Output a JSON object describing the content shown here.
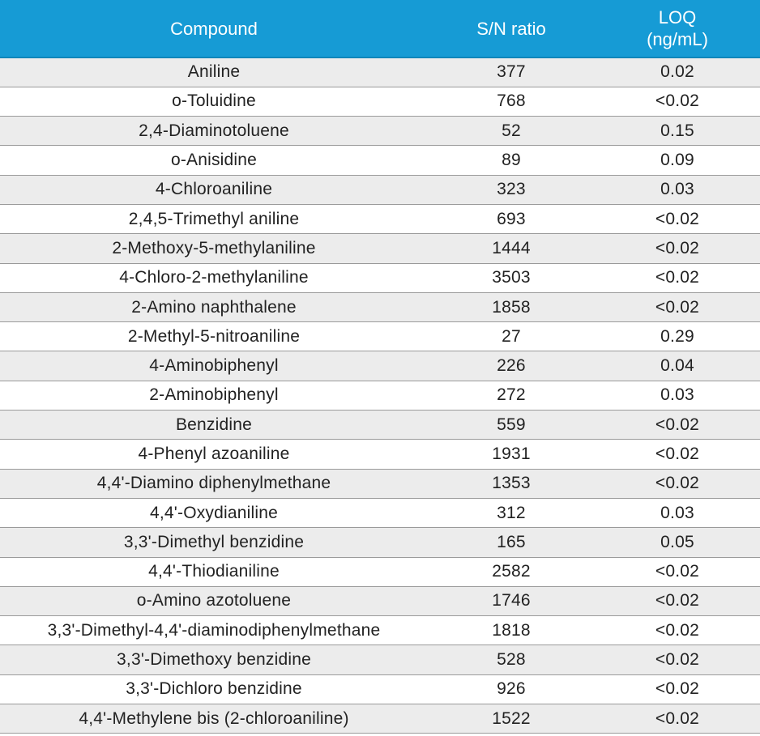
{
  "table": {
    "headers": {
      "compound": "Compound",
      "sn_ratio": "S/N ratio",
      "loq_line1": "LOQ",
      "loq_line2": "(ng/mL)"
    },
    "rows": [
      {
        "compound": "Aniline",
        "sn_ratio": "377",
        "loq": "0.02"
      },
      {
        "compound": "o-Toluidine",
        "sn_ratio": "768",
        "loq": "<0.02"
      },
      {
        "compound": "2,4-Diaminotoluene",
        "sn_ratio": "52",
        "loq": "0.15"
      },
      {
        "compound": "o-Anisidine",
        "sn_ratio": "89",
        "loq": "0.09"
      },
      {
        "compound": "4-Chloroaniline",
        "sn_ratio": "323",
        "loq": "0.03"
      },
      {
        "compound": "2,4,5-Trimethyl aniline",
        "sn_ratio": "693",
        "loq": "<0.02"
      },
      {
        "compound": "2-Methoxy-5-methylaniline",
        "sn_ratio": "1444",
        "loq": "<0.02"
      },
      {
        "compound": "4-Chloro-2-methylaniline",
        "sn_ratio": "3503",
        "loq": "<0.02"
      },
      {
        "compound": "2-Amino naphthalene",
        "sn_ratio": "1858",
        "loq": "<0.02"
      },
      {
        "compound": "2-Methyl-5-nitroaniline",
        "sn_ratio": "27",
        "loq": "0.29"
      },
      {
        "compound": "4-Aminobiphenyl",
        "sn_ratio": "226",
        "loq": "0.04"
      },
      {
        "compound": "2-Aminobiphenyl",
        "sn_ratio": "272",
        "loq": "0.03"
      },
      {
        "compound": "Benzidine",
        "sn_ratio": "559",
        "loq": "<0.02"
      },
      {
        "compound": "4-Phenyl azoaniline",
        "sn_ratio": "1931",
        "loq": "<0.02"
      },
      {
        "compound": "4,4'-Diamino diphenylmethane",
        "sn_ratio": "1353",
        "loq": "<0.02"
      },
      {
        "compound": "4,4'-Oxydianiline",
        "sn_ratio": "312",
        "loq": "0.03"
      },
      {
        "compound": "3,3'-Dimethyl benzidine",
        "sn_ratio": "165",
        "loq": "0.05"
      },
      {
        "compound": "4,4'-Thiodianiline",
        "sn_ratio": "2582",
        "loq": "<0.02"
      },
      {
        "compound": "o-Amino azotoluene",
        "sn_ratio": "1746",
        "loq": "<0.02"
      },
      {
        "compound": "3,3'-Dimethyl-4,4'-diaminodiphenylmethane",
        "sn_ratio": "1818",
        "loq": "<0.02"
      },
      {
        "compound": "3,3'-Dimethoxy benzidine",
        "sn_ratio": "528",
        "loq": "<0.02"
      },
      {
        "compound": "3,3'-Dichloro benzidine",
        "sn_ratio": "926",
        "loq": "<0.02"
      },
      {
        "compound": "4,4'-Methylene bis (2-chloroaniline)",
        "sn_ratio": "1522",
        "loq": "<0.02"
      }
    ]
  },
  "colors": {
    "header_background": "#169bd5",
    "header_text": "#ffffff",
    "row_odd_background": "#ececec",
    "row_even_background": "#ffffff"
  }
}
